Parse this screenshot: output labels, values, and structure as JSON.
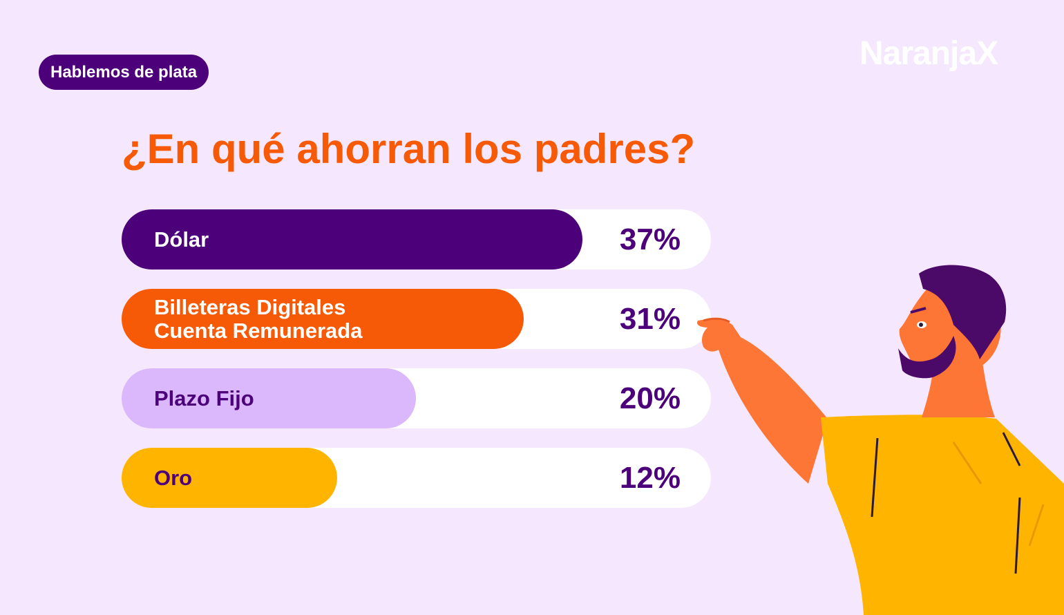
{
  "badge": {
    "label": "Hablemos de plata"
  },
  "brand": {
    "logo_text": "NaranjaX"
  },
  "colors": {
    "background": "#f5e7fd",
    "purple": "#4c007a",
    "orange": "#f65a07",
    "lilac": "#dbb7fb",
    "yellow": "#ffb400",
    "track": "#ffffff"
  },
  "chart_data": {
    "type": "bar",
    "orientation": "horizontal",
    "title": "¿En qué ahorran los padres?",
    "unit": "%",
    "xlim": [
      0,
      100
    ],
    "categories": [
      [
        "Dólar"
      ],
      [
        "Billeteras Digitales",
        "Cuenta Remunerada"
      ],
      [
        "Plazo Fijo"
      ],
      [
        "Oro"
      ]
    ],
    "values": [
      37,
      31,
      20,
      12
    ],
    "value_labels": [
      "37%",
      "31%",
      "20%",
      "12%"
    ],
    "bar_colors": [
      "#4c007a",
      "#f65a07",
      "#dbb7fb",
      "#ffb400"
    ],
    "label_colors": [
      "#ffffff",
      "#ffffff",
      "#4c007a",
      "#4c007a"
    ],
    "grid": false,
    "legend": "none"
  }
}
